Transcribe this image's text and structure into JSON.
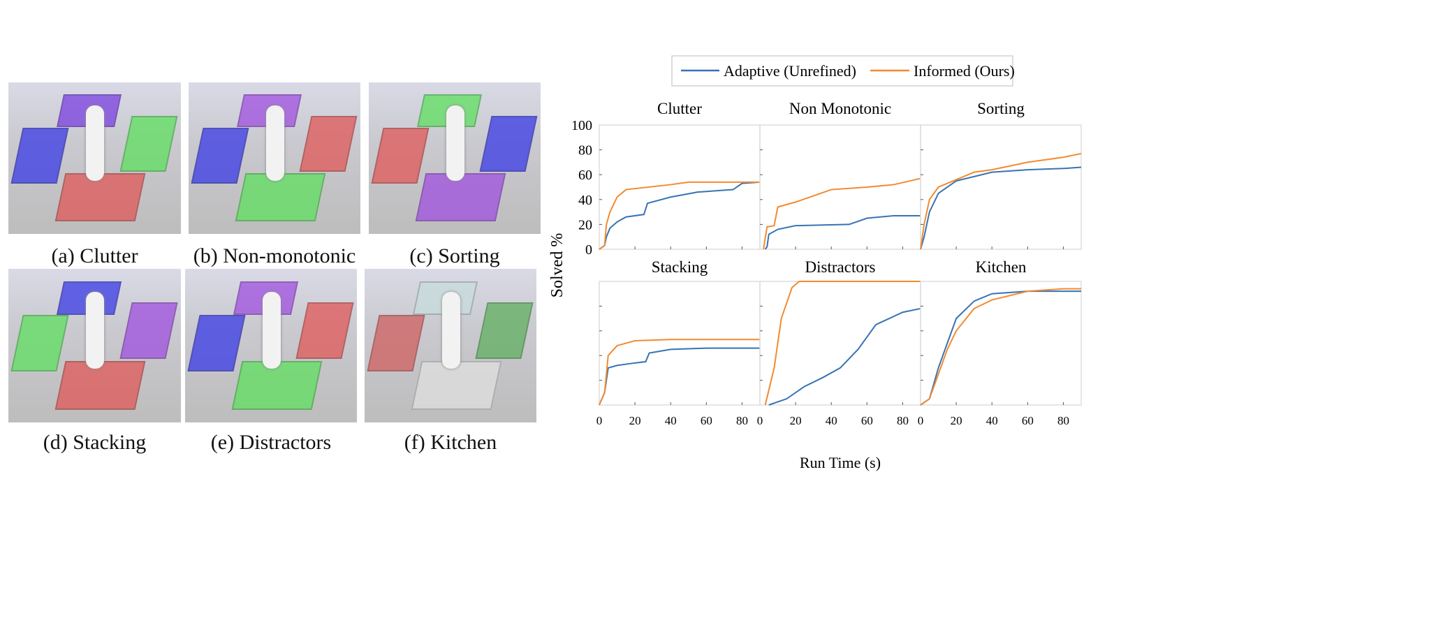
{
  "scenes": [
    {
      "caption": "(a) Clutter",
      "tables": [
        "#7b3fe0",
        "#3a3ae6",
        "#5fe05f",
        "#e05858"
      ]
    },
    {
      "caption": "(b) Non-monotonic",
      "tables": [
        "#a050e0",
        "#3a3ae6",
        "#e05858",
        "#5fe05f"
      ]
    },
    {
      "caption": "(c) Sorting",
      "tables": [
        "#5fe05f",
        "#e05858",
        "#3a3ae6",
        "#a050e0"
      ]
    },
    {
      "caption": "(d) Stacking",
      "tables": [
        "#3a3ae6",
        "#5fe05f",
        "#a050e0",
        "#e05858"
      ]
    },
    {
      "caption": "(e) Distractors",
      "tables": [
        "#a050e0",
        "#3a3ae6",
        "#e05858",
        "#5fe05f"
      ]
    },
    {
      "caption": "(f) Kitchen",
      "tables": [
        "#c8dcdc",
        "#d06060",
        "#60b060",
        "#e0e0e0"
      ]
    }
  ],
  "chart_data": {
    "type": "line",
    "legend": [
      "Adaptive (Unrefined)",
      "Informed (Ours)"
    ],
    "legend_position": "top",
    "colors": {
      "adaptive": "#3773b3",
      "informed": "#f28a30"
    },
    "ylabel": "Solved %",
    "xlabel": "Run Time (s)",
    "xlim": [
      0,
      90
    ],
    "ylim": [
      0,
      100
    ],
    "yticks": [
      "0",
      "20",
      "40",
      "60",
      "80",
      "100"
    ],
    "xticks": [
      "0",
      "20",
      "40",
      "60",
      "80"
    ],
    "panels": [
      {
        "title": "Clutter",
        "adaptive": [
          [
            0,
            0
          ],
          [
            3,
            3
          ],
          [
            4,
            10
          ],
          [
            6,
            17
          ],
          [
            10,
            22
          ],
          [
            15,
            26
          ],
          [
            25,
            28
          ],
          [
            27,
            37
          ],
          [
            40,
            42
          ],
          [
            55,
            46
          ],
          [
            75,
            48
          ],
          [
            80,
            53
          ],
          [
            90,
            54
          ]
        ],
        "informed": [
          [
            0,
            0
          ],
          [
            3,
            3
          ],
          [
            4,
            20
          ],
          [
            6,
            30
          ],
          [
            10,
            42
          ],
          [
            15,
            48
          ],
          [
            40,
            52
          ],
          [
            50,
            54
          ],
          [
            90,
            54
          ]
        ]
      },
      {
        "title": "Non Monotonic",
        "adaptive": [
          [
            3,
            0
          ],
          [
            4,
            2
          ],
          [
            5,
            12
          ],
          [
            10,
            16
          ],
          [
            20,
            19
          ],
          [
            50,
            20
          ],
          [
            60,
            25
          ],
          [
            75,
            27
          ],
          [
            90,
            27
          ]
        ],
        "informed": [
          [
            2,
            0
          ],
          [
            4,
            18
          ],
          [
            8,
            19
          ],
          [
            10,
            34
          ],
          [
            20,
            38
          ],
          [
            40,
            48
          ],
          [
            60,
            50
          ],
          [
            75,
            52
          ],
          [
            90,
            57
          ]
        ]
      },
      {
        "title": "Sorting",
        "adaptive": [
          [
            0,
            0
          ],
          [
            2,
            10
          ],
          [
            5,
            30
          ],
          [
            10,
            45
          ],
          [
            20,
            55
          ],
          [
            40,
            62
          ],
          [
            60,
            64
          ],
          [
            80,
            65
          ],
          [
            90,
            66
          ]
        ],
        "informed": [
          [
            0,
            0
          ],
          [
            2,
            20
          ],
          [
            5,
            40
          ],
          [
            10,
            50
          ],
          [
            20,
            56
          ],
          [
            30,
            62
          ],
          [
            40,
            64
          ],
          [
            60,
            70
          ],
          [
            80,
            74
          ],
          [
            90,
            77
          ]
        ]
      },
      {
        "title": "Stacking",
        "adaptive": [
          [
            0,
            0
          ],
          [
            3,
            10
          ],
          [
            5,
            30
          ],
          [
            10,
            32
          ],
          [
            20,
            34
          ],
          [
            26,
            35
          ],
          [
            28,
            42
          ],
          [
            40,
            45
          ],
          [
            60,
            46
          ],
          [
            90,
            46
          ]
        ],
        "informed": [
          [
            0,
            0
          ],
          [
            3,
            10
          ],
          [
            5,
            40
          ],
          [
            10,
            48
          ],
          [
            20,
            52
          ],
          [
            40,
            53
          ],
          [
            90,
            53
          ]
        ]
      },
      {
        "title": "Distractors",
        "adaptive": [
          [
            5,
            0
          ],
          [
            15,
            5
          ],
          [
            25,
            15
          ],
          [
            35,
            22
          ],
          [
            45,
            30
          ],
          [
            55,
            45
          ],
          [
            65,
            65
          ],
          [
            80,
            75
          ],
          [
            90,
            78
          ]
        ],
        "informed": [
          [
            3,
            0
          ],
          [
            8,
            30
          ],
          [
            12,
            70
          ],
          [
            18,
            95
          ],
          [
            22,
            100
          ],
          [
            90,
            100
          ]
        ]
      },
      {
        "title": "Kitchen",
        "adaptive": [
          [
            0,
            0
          ],
          [
            5,
            5
          ],
          [
            10,
            30
          ],
          [
            15,
            50
          ],
          [
            20,
            70
          ],
          [
            30,
            84
          ],
          [
            40,
            90
          ],
          [
            60,
            92
          ],
          [
            90,
            92
          ]
        ],
        "informed": [
          [
            0,
            0
          ],
          [
            5,
            5
          ],
          [
            10,
            25
          ],
          [
            15,
            45
          ],
          [
            20,
            60
          ],
          [
            30,
            78
          ],
          [
            40,
            85
          ],
          [
            60,
            92
          ],
          [
            80,
            94
          ],
          [
            90,
            94
          ]
        ]
      }
    ]
  }
}
